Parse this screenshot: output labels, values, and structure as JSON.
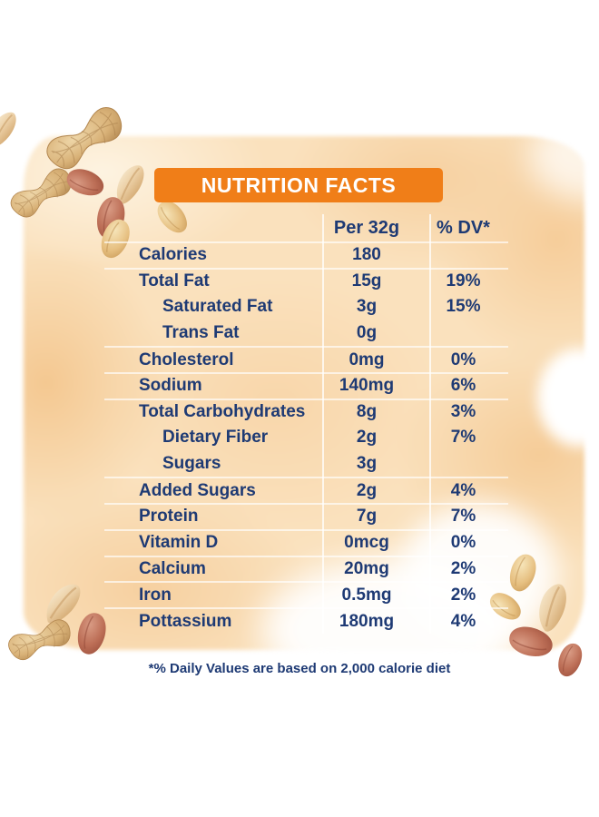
{
  "header": {
    "title": "NUTRITION FACTS"
  },
  "table": {
    "columns": {
      "amount": "Per 32g",
      "dv": "% DV*"
    },
    "rows": [
      {
        "label": "Calories",
        "amount": "180",
        "dv": "",
        "indent": false
      },
      {
        "label": "Total Fat",
        "amount": "15g",
        "dv": "19%",
        "indent": false
      },
      {
        "label": "Saturated Fat",
        "amount": "3g",
        "dv": "15%",
        "indent": true
      },
      {
        "label": "Trans Fat",
        "amount": "0g",
        "dv": "",
        "indent": true
      },
      {
        "label": "Cholesterol",
        "amount": "0mg",
        "dv": "0%",
        "indent": false
      },
      {
        "label": "Sodium",
        "amount": "140mg",
        "dv": "6%",
        "indent": false
      },
      {
        "label": "Total Carbohydrates",
        "amount": "8g",
        "dv": "3%",
        "indent": false
      },
      {
        "label": "Dietary Fiber",
        "amount": "2g",
        "dv": "7%",
        "indent": true
      },
      {
        "label": "Sugars",
        "amount": "3g",
        "dv": "",
        "indent": true
      },
      {
        "label": "Added Sugars",
        "amount": "2g",
        "dv": "4%",
        "indent": false
      },
      {
        "label": "Protein",
        "amount": "7g",
        "dv": "7%",
        "indent": false
      },
      {
        "label": "Vitamin D",
        "amount": "0mcg",
        "dv": "0%",
        "indent": false
      },
      {
        "label": "Calcium",
        "amount": "20mg",
        "dv": "2%",
        "indent": false
      },
      {
        "label": "Iron",
        "amount": "0.5mg",
        "dv": "2%",
        "indent": false
      },
      {
        "label": "Pottassium",
        "amount": "180mg",
        "dv": "4%",
        "indent": false
      }
    ]
  },
  "footnote": "*% Daily Values are based on 2,000 calorie diet",
  "colors": {
    "text_navy": "#1e3a74",
    "accent_orange": "#F07E18",
    "wash_peach": "#fae1bd"
  },
  "decorations": {
    "peanut_clusters": [
      "top-left",
      "bottom-left",
      "bottom-right"
    ]
  }
}
